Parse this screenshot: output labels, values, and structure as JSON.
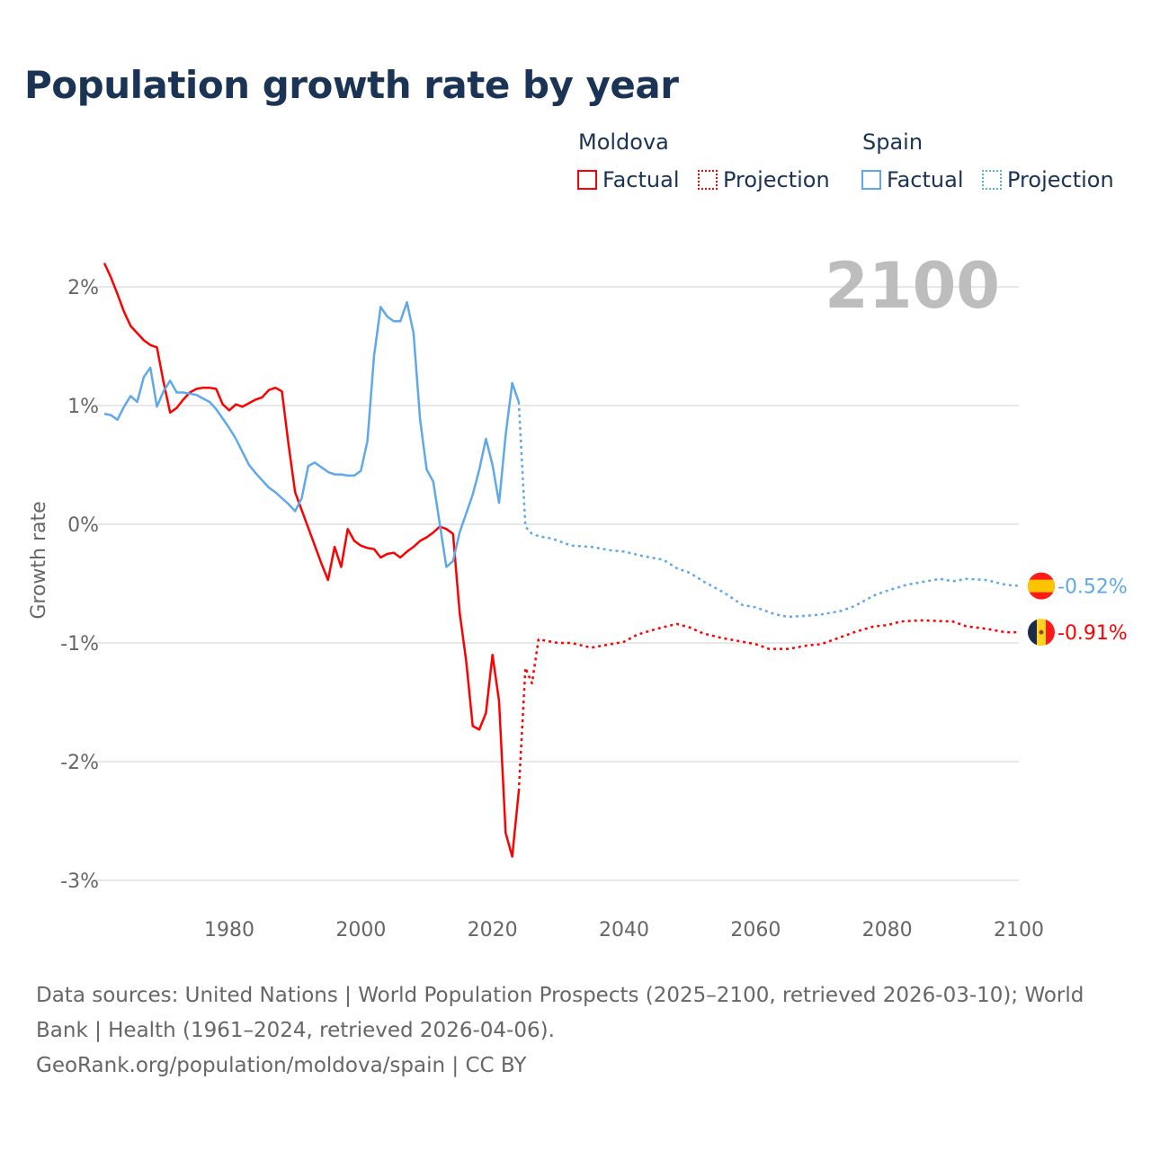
{
  "chart_data": {
    "type": "line",
    "title": "Population growth rate by year",
    "ylabel": "Growth rate",
    "xlabel": "",
    "xlim": [
      1961,
      2100
    ],
    "ylim": [
      -3.2,
      2.3
    ],
    "x_ticks": [
      1980,
      2000,
      2020,
      2040,
      2060,
      2080,
      2100
    ],
    "x_tick_labels": [
      "1980",
      "2000",
      "2020",
      "2040",
      "2060",
      "2080",
      "2100"
    ],
    "y_ticks": [
      2,
      1,
      0,
      -1,
      -2,
      -3
    ],
    "y_tick_labels": [
      "2%",
      "1%",
      "0%",
      "-1%",
      "-2%",
      "-3%"
    ],
    "grid": true,
    "year_overlay": "2100",
    "legend": {
      "placement": "top-right",
      "groups": [
        {
          "name": "Moldova",
          "factual": "Factual",
          "projection": "Projection"
        },
        {
          "name": "Spain",
          "factual": "Factual",
          "projection": "Projection"
        }
      ]
    },
    "series": [
      {
        "name": "Moldova",
        "kind": "Factual",
        "color": "#ff0000",
        "x": [
          1961,
          1962,
          1963,
          1964,
          1965,
          1966,
          1967,
          1968,
          1969,
          1970,
          1971,
          1972,
          1973,
          1974,
          1975,
          1976,
          1977,
          1978,
          1979,
          1980,
          1981,
          1982,
          1983,
          1984,
          1985,
          1986,
          1987,
          1988,
          1989,
          1990,
          1991,
          1992,
          1993,
          1994,
          1995,
          1996,
          1997,
          1998,
          1999,
          2000,
          2001,
          2002,
          2003,
          2004,
          2005,
          2006,
          2007,
          2008,
          2009,
          2010,
          2011,
          2012,
          2013,
          2014,
          2015,
          2016,
          2017,
          2018,
          2019,
          2020,
          2021,
          2022,
          2023,
          2024
        ],
        "y": [
          2.2,
          2.08,
          1.94,
          1.79,
          1.67,
          1.61,
          1.55,
          1.51,
          1.49,
          1.2,
          0.94,
          0.98,
          1.05,
          1.11,
          1.14,
          1.15,
          1.15,
          1.14,
          1.01,
          0.96,
          1.01,
          0.99,
          1.02,
          1.05,
          1.07,
          1.13,
          1.15,
          1.12,
          0.67,
          0.27,
          0.12,
          -0.03,
          -0.18,
          -0.33,
          -0.47,
          -0.19,
          -0.36,
          -0.04,
          -0.14,
          -0.18,
          -0.2,
          -0.21,
          -0.28,
          -0.25,
          -0.24,
          -0.28,
          -0.23,
          -0.19,
          -0.14,
          -0.11,
          -0.07,
          -0.02,
          -0.04,
          -0.08,
          -0.74,
          -1.15,
          -1.7,
          -1.73,
          -1.59,
          -1.1,
          -1.49,
          -2.6,
          -2.8,
          -2.25
        ]
      },
      {
        "name": "Moldova",
        "kind": "Projection",
        "color": "#ff0000",
        "x": [
          2024,
          2025,
          2026,
          2027,
          2028,
          2030,
          2032,
          2035,
          2040,
          2042,
          2045,
          2048,
          2050,
          2052,
          2055,
          2058,
          2060,
          2062,
          2065,
          2068,
          2070,
          2072,
          2075,
          2078,
          2080,
          2082,
          2085,
          2090,
          2092,
          2095,
          2098,
          2100
        ],
        "y": [
          -2.25,
          -1.21,
          -1.34,
          -0.97,
          -0.98,
          -1.0,
          -1.0,
          -1.04,
          -0.99,
          -0.93,
          -0.88,
          -0.84,
          -0.87,
          -0.92,
          -0.96,
          -0.99,
          -1.01,
          -1.05,
          -1.05,
          -1.02,
          -1.01,
          -0.97,
          -0.91,
          -0.86,
          -0.85,
          -0.82,
          -0.81,
          -0.82,
          -0.86,
          -0.88,
          -0.91,
          -0.91
        ]
      },
      {
        "name": "Spain",
        "kind": "Factual",
        "color": "#5fa8ea",
        "x": [
          1961,
          1962,
          1963,
          1964,
          1965,
          1966,
          1967,
          1968,
          1969,
          1970,
          1971,
          1972,
          1973,
          1974,
          1975,
          1976,
          1977,
          1978,
          1979,
          1980,
          1981,
          1982,
          1983,
          1984,
          1985,
          1986,
          1987,
          1988,
          1989,
          1990,
          1991,
          1992,
          1993,
          1994,
          1995,
          1996,
          1997,
          1998,
          1999,
          2000,
          2001,
          2002,
          2003,
          2004,
          2005,
          2006,
          2007,
          2008,
          2009,
          2010,
          2011,
          2012,
          2013,
          2014,
          2015,
          2016,
          2017,
          2018,
          2019,
          2020,
          2021,
          2022,
          2023,
          2024
        ],
        "y": [
          0.93,
          0.92,
          0.88,
          0.99,
          1.08,
          1.03,
          1.24,
          1.32,
          0.99,
          1.12,
          1.21,
          1.11,
          1.11,
          1.1,
          1.09,
          1.06,
          1.03,
          0.97,
          0.89,
          0.81,
          0.72,
          0.61,
          0.5,
          0.43,
          0.37,
          0.31,
          0.27,
          0.22,
          0.17,
          0.11,
          0.22,
          0.49,
          0.52,
          0.48,
          0.44,
          0.42,
          0.42,
          0.41,
          0.41,
          0.45,
          0.7,
          1.42,
          1.83,
          1.75,
          1.71,
          1.71,
          1.87,
          1.61,
          0.88,
          0.46,
          0.36,
          0.0,
          -0.36,
          -0.31,
          -0.07,
          0.09,
          0.25,
          0.46,
          0.72,
          0.5,
          0.18,
          0.75,
          1.19,
          1.03
        ]
      },
      {
        "name": "Spain",
        "kind": "Projection",
        "color": "#5fa8ea",
        "x": [
          2024,
          2025,
          2026,
          2027,
          2029,
          2032,
          2035,
          2038,
          2040,
          2043,
          2046,
          2048,
          2050,
          2052,
          2055,
          2058,
          2060,
          2063,
          2065,
          2068,
          2070,
          2073,
          2075,
          2078,
          2080,
          2083,
          2085,
          2088,
          2090,
          2092,
          2095,
          2098,
          2100
        ],
        "y": [
          1.03,
          -0.02,
          -0.08,
          -0.1,
          -0.12,
          -0.18,
          -0.19,
          -0.22,
          -0.23,
          -0.27,
          -0.3,
          -0.37,
          -0.41,
          -0.48,
          -0.57,
          -0.68,
          -0.7,
          -0.76,
          -0.78,
          -0.77,
          -0.76,
          -0.73,
          -0.69,
          -0.6,
          -0.56,
          -0.51,
          -0.49,
          -0.46,
          -0.48,
          -0.46,
          -0.47,
          -0.51,
          -0.52
        ]
      }
    ],
    "end_labels": [
      {
        "name": "Spain",
        "label": "-0.52%",
        "value": -0.52,
        "color": "#5fa8ea"
      },
      {
        "name": "Moldova",
        "label": "-0.91%",
        "value": -0.91,
        "color": "#ff0000"
      }
    ]
  },
  "footer": {
    "sources": "Data sources: United Nations | World Population Prospects (2025–2100, retrieved 2026-03-10); World Bank | Health (1961–2024, retrieved 2026-04-06).",
    "link": "GeoRank.org/population/moldova/spain | CC BY"
  }
}
